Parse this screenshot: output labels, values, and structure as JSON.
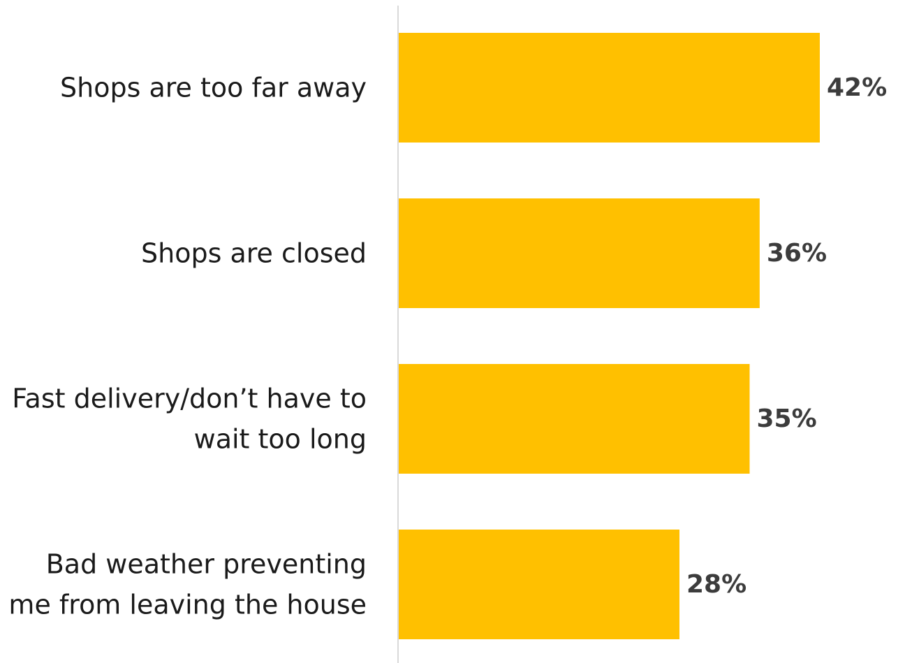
{
  "chart_data": {
    "type": "bar",
    "orientation": "horizontal",
    "categories": [
      [
        "Shops are too far away"
      ],
      [
        "Shops are closed"
      ],
      [
        "Fast delivery/don’t have to",
        "wait too long"
      ],
      [
        "Bad weather preventing",
        "me from leaving the house"
      ]
    ],
    "values": [
      42,
      36,
      35,
      28
    ],
    "value_labels": [
      "42%",
      "36%",
      "35%",
      "28%"
    ],
    "value_unit": "%",
    "xlim": [
      0,
      42
    ],
    "grid": false,
    "legend": "none",
    "colors": {
      "bar": "#FFC000",
      "axis": "#d9d9d9",
      "label_text": "#1a1a1a",
      "value_text": "#3c3c3c"
    }
  }
}
